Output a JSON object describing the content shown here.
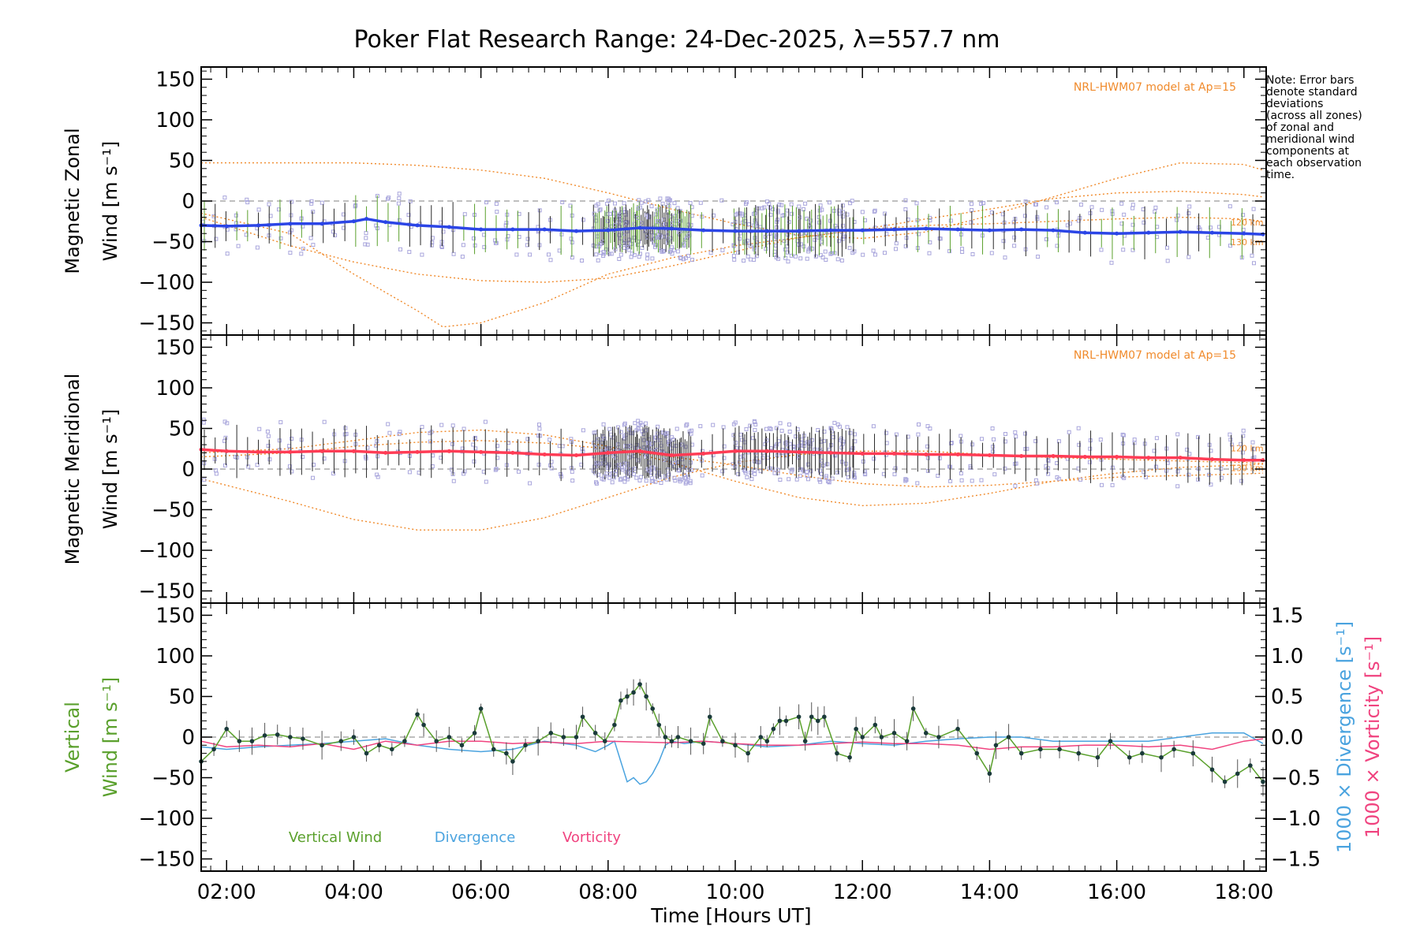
{
  "title": "Poker Flat Research Range: 24-Dec-2025, λ=557.7 nm",
  "note_lines": [
    "Note: Error bars",
    "denote standard",
    "deviations",
    "(across all zones)",
    "of zonal and",
    "meridional wind",
    "components at",
    "each observation",
    "time."
  ],
  "colors": {
    "zonal": "#2b45e6",
    "meridional": "#ff3c55",
    "vertical": "#5aa02c",
    "divergence": "#4aa3df",
    "vorticity": "#f0437f",
    "model": "#f08a2b",
    "scatter": "#a9a6dc",
    "errorbar": "#2a2a2a",
    "zero_line": "#999999"
  },
  "chart_data": [
    {
      "id": "zonal",
      "type": "line",
      "ylabel_lines": [
        "Magnetic Zonal",
        "Wind [m s⁻¹]"
      ],
      "ylim": [
        -165,
        165
      ],
      "yticks": [
        "150",
        "100",
        "50",
        "0",
        "−50",
        "−100",
        "−150"
      ],
      "model_label": "NRL-HWM07 model at Ap=15",
      "alt_labels": [
        "120 km",
        "130 km"
      ],
      "series": {
        "name": "Magnetic Zonal Wind",
        "x": [
          1.6,
          2.0,
          2.5,
          3.0,
          3.5,
          4.0,
          4.2,
          4.5,
          5.0,
          5.5,
          6.0,
          6.5,
          7.0,
          7.5,
          8.0,
          8.5,
          9.0,
          9.5,
          10.0,
          10.5,
          11.0,
          11.5,
          12.0,
          12.5,
          13.0,
          13.5,
          14.0,
          14.5,
          15.0,
          15.5,
          16.0,
          16.5,
          17.0,
          17.5,
          18.0,
          18.3
        ],
        "y": [
          -30,
          -31,
          -30,
          -28,
          -28,
          -25,
          -22,
          -26,
          -30,
          -32,
          -35,
          -35,
          -35,
          -37,
          -36,
          -33,
          -34,
          -36,
          -37,
          -37,
          -37,
          -36,
          -36,
          -35,
          -34,
          -35,
          -36,
          -35,
          -36,
          -39,
          -40,
          -39,
          -38,
          -39,
          -40,
          -41
        ]
      },
      "models": [
        {
          "x": [
            1.6,
            3,
            4,
            5,
            6,
            7,
            8,
            9,
            10,
            11,
            12,
            13,
            14,
            15,
            16,
            17,
            18,
            18.3
          ],
          "y": [
            47,
            47,
            47,
            44,
            38,
            28,
            10,
            -10,
            -28,
            -42,
            -46,
            -38,
            -18,
            5,
            28,
            47,
            45,
            38
          ]
        },
        {
          "x": [
            1.6,
            3,
            4,
            5,
            5.4,
            6,
            7,
            8,
            9,
            10,
            11,
            12,
            13,
            14,
            15,
            16,
            17,
            18,
            18.3
          ],
          "y": [
            -15,
            -40,
            -90,
            -135,
            -155,
            -150,
            -125,
            -90,
            -70,
            -55,
            -45,
            -35,
            -22,
            -10,
            3,
            10,
            12,
            8,
            5
          ]
        },
        {
          "x": [
            1.6,
            3,
            4,
            5,
            6,
            7,
            8,
            9,
            10,
            11,
            12,
            13,
            14,
            15,
            16,
            17,
            18,
            18.3
          ],
          "y": [
            -20,
            -55,
            -75,
            -90,
            -98,
            -100,
            -95,
            -80,
            -62,
            -45,
            -35,
            -30,
            -28,
            -25,
            -22,
            -20,
            -22,
            -25
          ]
        }
      ]
    },
    {
      "id": "meridional",
      "type": "line",
      "ylabel_lines": [
        "Magnetic Meridional",
        "Wind [m s⁻¹]"
      ],
      "ylim": [
        -165,
        165
      ],
      "yticks": [
        "150",
        "100",
        "50",
        "0",
        "−50",
        "−100",
        "−150"
      ],
      "model_label": "NRL-HWM07 model at Ap=15",
      "alt_labels": [
        "120 km",
        "130 km"
      ],
      "series": {
        "name": "Magnetic Meridional Wind",
        "x": [
          1.6,
          2.0,
          2.5,
          3.0,
          3.5,
          4.0,
          4.5,
          5.0,
          5.5,
          6.0,
          6.5,
          7.0,
          7.5,
          8.0,
          8.5,
          9.0,
          9.5,
          10.0,
          10.5,
          11.0,
          11.5,
          12.0,
          12.5,
          13.0,
          13.5,
          14.0,
          14.5,
          15.0,
          15.5,
          16.0,
          16.5,
          17.0,
          17.5,
          18.0,
          18.3
        ],
        "y": [
          24,
          22,
          21,
          21,
          22,
          22,
          20,
          21,
          22,
          21,
          20,
          18,
          17,
          20,
          22,
          17,
          19,
          22,
          22,
          21,
          20,
          19,
          19,
          18,
          18,
          17,
          16,
          16,
          15,
          15,
          14,
          14,
          12,
          11,
          11
        ]
      },
      "models": [
        {
          "x": [
            1.6,
            3,
            4,
            5,
            6,
            7,
            8,
            9,
            10,
            11,
            12,
            13,
            14,
            15,
            16,
            17,
            18,
            18.3
          ],
          "y": [
            -12,
            -40,
            -62,
            -75,
            -75,
            -60,
            -35,
            -10,
            8,
            18,
            22,
            22,
            18,
            14,
            12,
            10,
            8,
            7
          ]
        },
        {
          "x": [
            1.6,
            3,
            4,
            5,
            6,
            7,
            8,
            9,
            10,
            11,
            12,
            13,
            14,
            15,
            16,
            17,
            18,
            18.3
          ],
          "y": [
            20,
            25,
            35,
            45,
            48,
            42,
            28,
            8,
            -15,
            -35,
            -45,
            -42,
            -30,
            -15,
            -5,
            2,
            5,
            6
          ]
        },
        {
          "x": [
            1.6,
            3,
            4,
            5,
            6,
            7,
            8,
            9,
            10,
            11,
            12,
            13,
            14,
            15,
            16,
            17,
            18,
            18.3
          ],
          "y": [
            15,
            20,
            28,
            33,
            35,
            32,
            25,
            15,
            5,
            -8,
            -18,
            -22,
            -20,
            -15,
            -10,
            -8,
            -6,
            -5
          ]
        }
      ]
    },
    {
      "id": "vertical",
      "type": "line",
      "ylabel_lines": [
        "Vertical",
        "Wind [m s⁻¹]"
      ],
      "ylim": [
        -165,
        165
      ],
      "yticks": [
        "150",
        "100",
        "50",
        "0",
        "−50",
        "−100",
        "−150"
      ],
      "y2": {
        "ylim": [
          -1.65,
          1.65
        ],
        "yticks": [
          "1.5",
          "1.0",
          "0.5",
          "0.0",
          "−0.5",
          "−1.0",
          "−1.5"
        ],
        "divergence_label": "1000 × Divergence [s⁻¹]",
        "vorticity_label": "1000 × Vorticity [s⁻¹]"
      },
      "xlabel": "Time [Hours UT]",
      "xlim": [
        1.6,
        18.35
      ],
      "xticks": [
        "02:00",
        "04:00",
        "06:00",
        "08:00",
        "10:00",
        "12:00",
        "14:00",
        "16:00",
        "18:00"
      ],
      "legend": [
        "Vertical Wind",
        "Divergence",
        "Vorticity"
      ],
      "vertical_wind": {
        "x": [
          1.6,
          1.8,
          2.0,
          2.2,
          2.4,
          2.6,
          2.8,
          3.0,
          3.2,
          3.5,
          3.8,
          4.0,
          4.2,
          4.4,
          4.6,
          4.8,
          5.0,
          5.1,
          5.3,
          5.5,
          5.7,
          5.9,
          6.0,
          6.2,
          6.4,
          6.5,
          6.7,
          6.9,
          7.1,
          7.3,
          7.5,
          7.6,
          7.8,
          7.95,
          8.1,
          8.2,
          8.3,
          8.4,
          8.5,
          8.6,
          8.7,
          8.8,
          8.9,
          9.0,
          9.1,
          9.3,
          9.5,
          9.6,
          9.8,
          10.0,
          10.2,
          10.4,
          10.5,
          10.6,
          10.7,
          10.8,
          11.0,
          11.1,
          11.2,
          11.3,
          11.4,
          11.6,
          11.8,
          11.9,
          12.0,
          12.2,
          12.3,
          12.5,
          12.7,
          12.8,
          13.0,
          13.2,
          13.5,
          13.8,
          14.0,
          14.1,
          14.3,
          14.5,
          14.8,
          15.1,
          15.4,
          15.7,
          15.9,
          16.2,
          16.4,
          16.7,
          16.9,
          17.2,
          17.5,
          17.7,
          17.9,
          18.1,
          18.3
        ],
        "y": [
          -30,
          -15,
          10,
          -5,
          -5,
          2,
          3,
          0,
          -2,
          -10,
          -5,
          0,
          -20,
          -10,
          -15,
          -5,
          28,
          15,
          -5,
          0,
          -10,
          5,
          35,
          -15,
          -20,
          -30,
          -10,
          -5,
          5,
          0,
          0,
          25,
          5,
          -5,
          15,
          45,
          50,
          55,
          65,
          50,
          35,
          15,
          0,
          -5,
          0,
          -5,
          -8,
          25,
          -5,
          -10,
          -20,
          0,
          -5,
          10,
          20,
          20,
          25,
          -5,
          25,
          20,
          25,
          -20,
          -25,
          10,
          0,
          15,
          0,
          5,
          -5,
          35,
          5,
          0,
          10,
          -20,
          -45,
          -10,
          0,
          -20,
          -15,
          -15,
          -20,
          -25,
          -5,
          -25,
          -20,
          -25,
          -15,
          -20,
          -40,
          -55,
          -45,
          -35,
          -55
        ]
      },
      "divergence": {
        "x": [
          1.6,
          2.0,
          2.5,
          3.0,
          3.5,
          4.0,
          4.5,
          5.0,
          5.5,
          6.0,
          6.5,
          7.0,
          7.5,
          7.8,
          8.0,
          8.1,
          8.2,
          8.3,
          8.4,
          8.5,
          8.6,
          8.7,
          8.8,
          8.9,
          9.0,
          9.2,
          9.5,
          10.0,
          10.5,
          11.0,
          11.5,
          12.0,
          12.5,
          13.0,
          13.5,
          14.0,
          14.5,
          15.0,
          15.5,
          16.0,
          16.5,
          17.0,
          17.5,
          18.0,
          18.3
        ],
        "y": [
          -0.12,
          -0.15,
          -0.12,
          -0.1,
          -0.08,
          -0.05,
          -0.02,
          -0.1,
          -0.15,
          -0.18,
          -0.15,
          -0.05,
          -0.1,
          -0.18,
          -0.1,
          -0.05,
          -0.3,
          -0.55,
          -0.5,
          -0.58,
          -0.55,
          -0.45,
          -0.3,
          -0.1,
          -0.05,
          -0.08,
          -0.05,
          -0.08,
          -0.12,
          -0.1,
          -0.05,
          -0.08,
          -0.1,
          -0.05,
          -0.02,
          0.0,
          0.0,
          -0.05,
          -0.05,
          -0.05,
          -0.05,
          0.0,
          0.05,
          0.05,
          -0.08
        ]
      },
      "vorticity": {
        "x": [
          1.6,
          2.0,
          2.5,
          3.0,
          3.5,
          4.0,
          4.5,
          5.0,
          5.5,
          6.0,
          6.5,
          7.0,
          7.5,
          8.0,
          8.5,
          9.0,
          9.5,
          10.0,
          10.5,
          11.0,
          11.5,
          12.0,
          12.5,
          13.0,
          13.5,
          14.0,
          14.5,
          15.0,
          15.5,
          16.0,
          16.5,
          17.0,
          17.5,
          18.0,
          18.3
        ],
        "y": [
          -0.05,
          -0.12,
          -0.1,
          -0.12,
          -0.08,
          -0.15,
          -0.05,
          -0.1,
          -0.05,
          -0.05,
          -0.08,
          -0.06,
          -0.08,
          -0.05,
          -0.06,
          -0.07,
          -0.05,
          -0.08,
          -0.1,
          -0.1,
          -0.08,
          -0.06,
          -0.08,
          -0.08,
          -0.1,
          -0.15,
          -0.12,
          -0.12,
          -0.1,
          -0.1,
          -0.12,
          -0.1,
          -0.15,
          -0.05,
          -0.02
        ]
      }
    }
  ]
}
